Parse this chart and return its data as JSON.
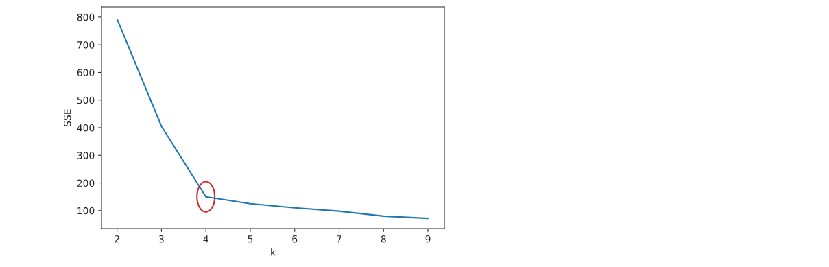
{
  "chart_data": {
    "type": "line",
    "xlabel": "k",
    "ylabel": "SSE",
    "x": [
      2,
      3,
      4,
      5,
      6,
      7,
      8,
      9
    ],
    "series": [
      {
        "color": "#1f77b4",
        "values": [
          793,
          405,
          150,
          125,
          110,
          98,
          80,
          72
        ]
      }
    ],
    "xlim": [
      1.65,
      9.37
    ],
    "ylim": [
      35,
      837
    ],
    "xticks": [
      2,
      3,
      4,
      5,
      6,
      7,
      8,
      9
    ],
    "yticks": [
      100,
      200,
      300,
      400,
      500,
      600,
      700,
      800
    ],
    "grid": false,
    "legend": false
  }
}
